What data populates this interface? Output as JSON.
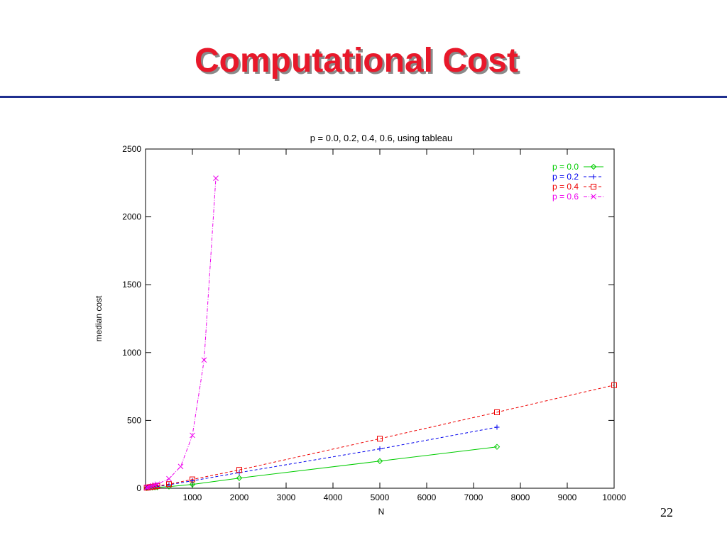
{
  "slide": {
    "title": "Computational Cost",
    "page_number": "22"
  },
  "colors": {
    "title": "#e8182a",
    "rule": "#1f2f8f"
  },
  "chart_data": {
    "type": "line",
    "title": "p = 0.0, 0.2, 0.4, 0.6,  using tableau",
    "xlabel": "N",
    "ylabel": "median cost",
    "xlim": [
      0,
      10000
    ],
    "ylim": [
      0,
      2500
    ],
    "xticks": [
      1000,
      2000,
      3000,
      4000,
      5000,
      6000,
      7000,
      8000,
      9000,
      10000
    ],
    "yticks": [
      0,
      500,
      1000,
      1500,
      2000,
      2500
    ],
    "legend_position": "top-right",
    "grid": false,
    "series": [
      {
        "name": "p = 0.0",
        "color": "#00cc00",
        "dash": "solid",
        "marker": "diamond",
        "x": [
          25,
          50,
          100,
          150,
          200,
          250,
          500,
          1000,
          2000,
          5000,
          7500
        ],
        "y": [
          2,
          3,
          4,
          5,
          6,
          7,
          12,
          28,
          75,
          200,
          305
        ]
      },
      {
        "name": "p = 0.2",
        "color": "#0000ee",
        "dash": "dashed",
        "marker": "plus",
        "x": [
          25,
          50,
          100,
          150,
          200,
          250,
          500,
          1000,
          2000,
          5000,
          7500
        ],
        "y": [
          3,
          5,
          7,
          9,
          11,
          13,
          25,
          55,
          115,
          290,
          450
        ]
      },
      {
        "name": "p = 0.4",
        "color": "#ee0000",
        "dash": "dashed",
        "marker": "square",
        "x": [
          25,
          50,
          100,
          150,
          200,
          250,
          500,
          1000,
          2000,
          5000,
          7500,
          10000
        ],
        "y": [
          4,
          6,
          9,
          11,
          14,
          16,
          30,
          65,
          135,
          365,
          560,
          760
        ]
      },
      {
        "name": "p = 0.6",
        "color": "#ee00ee",
        "dash": "dashdot",
        "marker": "x",
        "x": [
          25,
          50,
          100,
          150,
          200,
          250,
          500,
          750,
          1000,
          1250,
          1500
        ],
        "y": [
          5,
          8,
          12,
          18,
          24,
          30,
          70,
          160,
          390,
          945,
          2285
        ]
      }
    ]
  }
}
